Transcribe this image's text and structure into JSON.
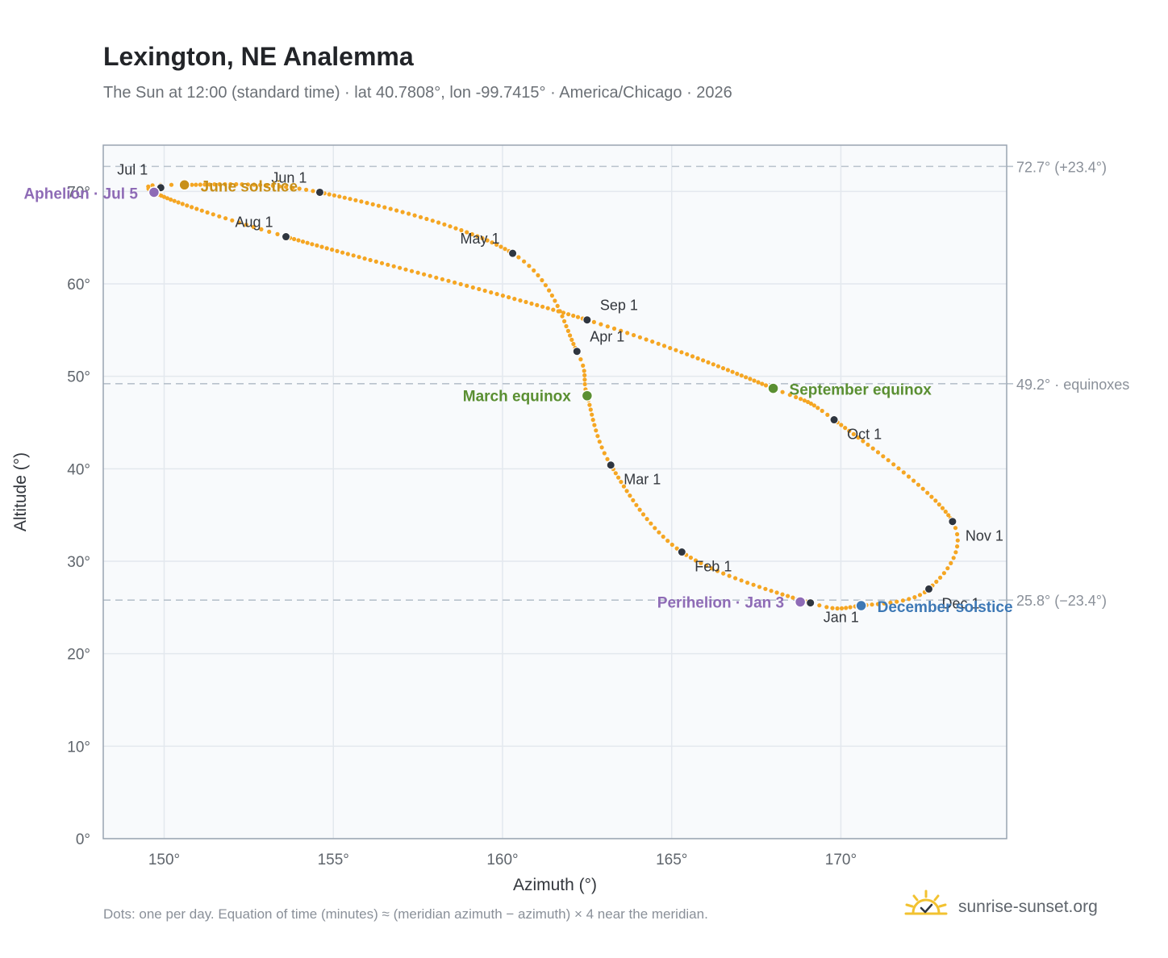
{
  "header": {
    "title": "Lexington, NE Analemma",
    "subtitle": "The Sun at 12:00 (standard time) · lat 40.7808°, lon -99.7415° · America/Chicago · 2026"
  },
  "footer": {
    "note": "Dots: one per day. Equation of time (minutes) ≈ (meridian azimuth − azimuth) × 4 near the meridian.",
    "brand": "sunrise-sunset.org"
  },
  "colors": {
    "curve": "#f5a623",
    "month_marker": "#2f3640",
    "solstice_june": "#c8901a",
    "solstice_december": "#3d78b5",
    "equinox": "#5a8f32",
    "apsis": "#8e6bb6",
    "reference_line": "#b8c2cc",
    "grid": "#e3e8ee",
    "plot_bg": "#f8fafc"
  },
  "chart_data": {
    "type": "scatter",
    "xlabel": "Azimuth (°)",
    "ylabel": "Altitude (°)",
    "xlim": [
      148.2,
      174.9
    ],
    "ylim": [
      0,
      75
    ],
    "x_ticks": [
      150,
      155,
      160,
      165,
      170
    ],
    "x_tick_labels": [
      "150°",
      "155°",
      "160°",
      "165°",
      "170°"
    ],
    "y_ticks": [
      0,
      10,
      20,
      30,
      40,
      50,
      60,
      70
    ],
    "y_tick_labels": [
      "0°",
      "10°",
      "20°",
      "30°",
      "40°",
      "50°",
      "60°",
      "70°"
    ],
    "grid": true,
    "reference_lines": [
      {
        "y": 72.7,
        "label": "72.7° (+23.4°)"
      },
      {
        "y": 49.2,
        "label": "49.2° · equinoxes"
      },
      {
        "y": 25.8,
        "label": "25.8° (−23.4°)"
      }
    ],
    "month_markers": [
      {
        "label": "Jan 1",
        "az": 169.1,
        "alt": 25.5
      },
      {
        "label": "Feb 1",
        "az": 165.3,
        "alt": 31.0
      },
      {
        "label": "Mar 1",
        "az": 163.2,
        "alt": 40.4
      },
      {
        "label": "Apr 1",
        "az": 162.2,
        "alt": 52.7
      },
      {
        "label": "May 1",
        "az": 160.3,
        "alt": 63.3
      },
      {
        "label": "Jun 1",
        "az": 154.6,
        "alt": 69.9
      },
      {
        "label": "Jul 1",
        "az": 149.9,
        "alt": 70.4
      },
      {
        "label": "Aug 1",
        "az": 153.6,
        "alt": 65.1
      },
      {
        "label": "Sep 1",
        "az": 162.5,
        "alt": 56.1
      },
      {
        "label": "Oct 1",
        "az": 169.8,
        "alt": 45.3
      },
      {
        "label": "Nov 1",
        "az": 173.3,
        "alt": 34.3
      },
      {
        "label": "Dec 1",
        "az": 172.6,
        "alt": 27.0
      }
    ],
    "events": [
      {
        "label": "June solstice",
        "az": 150.6,
        "alt": 70.7,
        "color": "#c8901a"
      },
      {
        "label": "Aphelion · Jul 5",
        "az": 149.7,
        "alt": 69.9,
        "color": "#8e6bb6"
      },
      {
        "label": "March equinox",
        "az": 162.5,
        "alt": 47.9,
        "color": "#5a8f32"
      },
      {
        "label": "September equinox",
        "az": 168.0,
        "alt": 48.7,
        "color": "#5a8f32"
      },
      {
        "label": "Perihelion · Jan 3",
        "az": 168.8,
        "alt": 25.6,
        "color": "#8e6bb6"
      },
      {
        "label": "December solstice",
        "az": 170.6,
        "alt": 25.2,
        "color": "#3d78b5"
      }
    ],
    "path_points": [
      [
        169.1,
        25.5
      ],
      [
        165.3,
        31.0
      ],
      [
        163.2,
        40.4
      ],
      [
        162.5,
        47.9
      ],
      [
        162.2,
        52.7
      ],
      [
        160.3,
        63.3
      ],
      [
        154.6,
        69.9
      ],
      [
        150.6,
        70.7
      ],
      [
        149.7,
        69.9
      ],
      [
        153.6,
        65.1
      ],
      [
        162.5,
        56.1
      ],
      [
        168.0,
        48.7
      ],
      [
        169.8,
        45.3
      ],
      [
        173.3,
        34.3
      ],
      [
        172.6,
        27.0
      ],
      [
        170.6,
        25.2
      ],
      [
        169.1,
        25.5
      ]
    ]
  }
}
